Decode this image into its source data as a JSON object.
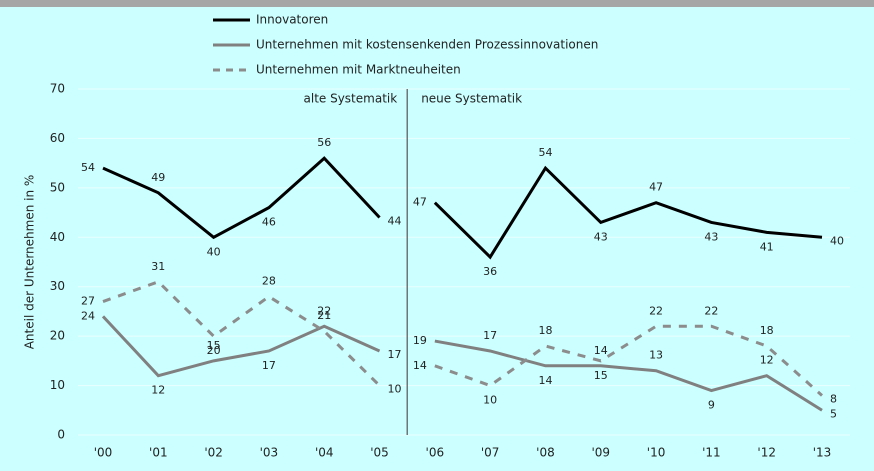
{
  "chart_data": {
    "type": "line",
    "ylabel": "Anteil der Unternehmen in %",
    "categories": [
      "'00",
      "'01",
      "'02",
      "'03",
      "'04",
      "'05",
      "'06",
      "'07",
      "'08",
      "'09",
      "'10",
      "'11",
      "'12",
      "'13"
    ],
    "series": [
      {
        "name": "Innovatoren",
        "color": "#000000",
        "dash": false,
        "values": [
          54,
          49,
          40,
          46,
          56,
          44,
          47,
          36,
          54,
          43,
          47,
          43,
          41,
          40
        ]
      },
      {
        "name": "Unternehmen mit kostensenkenden Prozessinnovationen",
        "color": "#808080",
        "dash": false,
        "values": [
          24,
          12,
          15,
          17,
          22,
          17,
          19,
          17,
          14,
          14,
          13,
          9,
          12,
          5
        ]
      },
      {
        "name": "Unternehmen mit Marktneuheiten",
        "color": "#8c8c8c",
        "dash": true,
        "values": [
          27,
          31,
          20,
          28,
          21,
          10,
          14,
          10,
          18,
          15,
          22,
          22,
          18,
          8
        ]
      }
    ],
    "divider_after": "'05",
    "annotations": [
      "alte Systematik",
      "neue Systematik"
    ],
    "ylim": [
      0,
      70
    ],
    "yticks": [
      0,
      10,
      20,
      30,
      40,
      50,
      60,
      70
    ],
    "grid": true
  }
}
